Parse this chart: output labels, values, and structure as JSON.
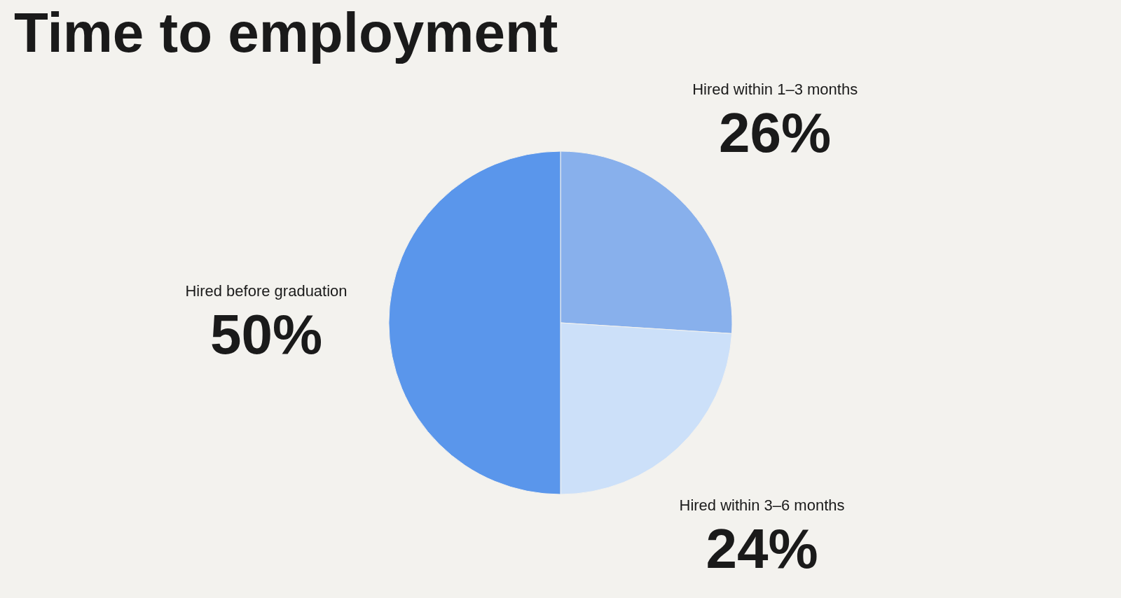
{
  "chart_data": {
    "type": "pie",
    "title": "Time to employment",
    "categories": [
      "Hired within 1–3 months",
      "Hired within 3–6 months",
      "Hired before graduation"
    ],
    "values": [
      26,
      24,
      50
    ],
    "value_labels": [
      "26%",
      "24%",
      "50%"
    ],
    "colors": [
      "#88b0ec",
      "#cce0f9",
      "#5a96eb"
    ]
  }
}
